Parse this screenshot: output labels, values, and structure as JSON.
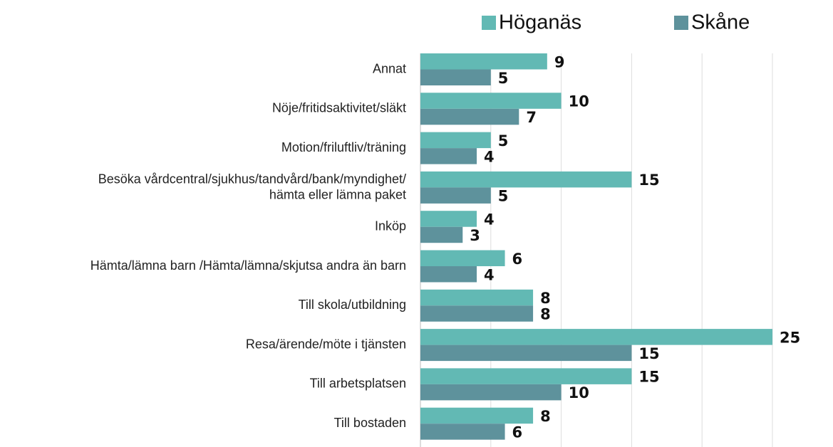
{
  "chart_data": {
    "type": "bar",
    "orientation": "horizontal",
    "categories": [
      "Annat",
      "Nöje/fritidsaktivitet/släkt",
      "Motion/friluftliv/träning",
      "Besöka vårdcentral/sjukhus/tandvård/bank/myndighet/\nhämta eller lämna paket",
      "Inköp",
      "Hämta/lämna barn /Hämta/lämna/skjutsa andra än barn",
      "Till skola/utbildning",
      "Resa/ärende/möte i tjänsten",
      "Till arbetsplatsen",
      "Till bostaden"
    ],
    "series": [
      {
        "name": "Höganäs",
        "color": "#62b9b4",
        "values": [
          9,
          10,
          5,
          15,
          4,
          6,
          8,
          25,
          15,
          8
        ]
      },
      {
        "name": "Skåne",
        "color": "#5e929c",
        "values": [
          5,
          7,
          4,
          5,
          3,
          4,
          8,
          15,
          10,
          6
        ]
      }
    ],
    "xlim": [
      0,
      25
    ],
    "xticks": [
      0,
      5,
      10,
      15,
      20,
      25
    ],
    "grid": true,
    "legend": "top"
  }
}
